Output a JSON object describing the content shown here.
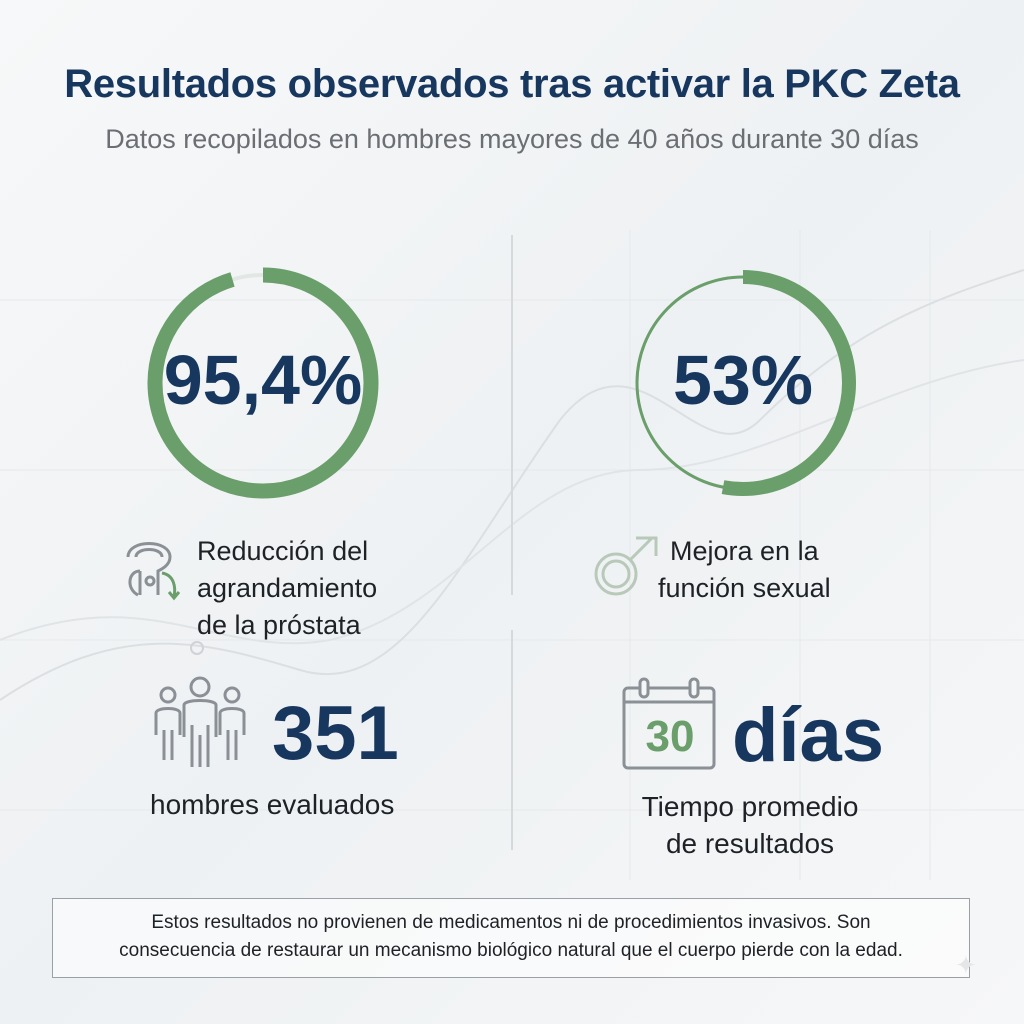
{
  "header": {
    "title": "Resultados observados tras activar la PKC Zeta",
    "subtitle": "Datos recopilados en hombres mayores de 40 años durante 30 días"
  },
  "stats": {
    "prostate": {
      "value": "95,4%",
      "fraction": 0.954,
      "label_lines": [
        "Reducción del",
        "agrandamiento",
        "de la próstata"
      ],
      "icon": "prostate-icon"
    },
    "sexual": {
      "value": "53%",
      "fraction": 0.53,
      "label_lines": [
        "Mejora en la",
        "función sexual"
      ],
      "icon": "male-symbol-icon"
    },
    "men": {
      "value": "351",
      "label": "hombres evaluados",
      "icon": "people-group-icon"
    },
    "days": {
      "calendar_number": "30",
      "value": "días",
      "label_lines": [
        "Tiempo promedio",
        "de resultados"
      ],
      "icon": "calendar-icon"
    }
  },
  "footer": {
    "note_lines": [
      "Estos resultados no provienen de medicamentos ni de procedimientos invasivos. Son",
      "consecuencia de restaurar un mecanismo biológico natural que el cuerpo pierde con la edad."
    ]
  },
  "colors": {
    "navy": "#17375e",
    "green": "#6a9e6a",
    "track": "#e3e7e4",
    "icon_gray": "#8a9095"
  }
}
